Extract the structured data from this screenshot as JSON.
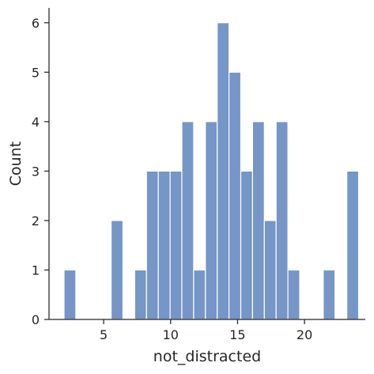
{
  "chart_data": {
    "type": "bar",
    "subtype": "histogram",
    "xlabel": "not_distracted",
    "ylabel": "Count",
    "bar_color": "#7596c6",
    "xlim": [
      0.92,
      24.54
    ],
    "ylim": [
      0,
      6.3
    ],
    "xticks": [
      5,
      10,
      15,
      20
    ],
    "yticks": [
      0,
      1,
      2,
      3,
      4,
      5,
      6
    ],
    "bin_width": 0.88,
    "bins": [
      {
        "x0": 2.04,
        "x1": 2.92,
        "count": 1
      },
      {
        "x0": 2.92,
        "x1": 3.8,
        "count": 0
      },
      {
        "x0": 3.8,
        "x1": 4.68,
        "count": 0
      },
      {
        "x0": 4.68,
        "x1": 5.56,
        "count": 0
      },
      {
        "x0": 5.56,
        "x1": 6.44,
        "count": 2
      },
      {
        "x0": 6.44,
        "x1": 7.32,
        "count": 0
      },
      {
        "x0": 7.32,
        "x1": 8.2,
        "count": 1
      },
      {
        "x0": 8.2,
        "x1": 9.08,
        "count": 3
      },
      {
        "x0": 9.08,
        "x1": 9.96,
        "count": 3
      },
      {
        "x0": 9.96,
        "x1": 10.84,
        "count": 3
      },
      {
        "x0": 10.84,
        "x1": 11.72,
        "count": 4
      },
      {
        "x0": 11.72,
        "x1": 12.6,
        "count": 1
      },
      {
        "x0": 12.6,
        "x1": 13.48,
        "count": 4
      },
      {
        "x0": 13.48,
        "x1": 14.36,
        "count": 6
      },
      {
        "x0": 14.36,
        "x1": 15.24,
        "count": 5
      },
      {
        "x0": 15.24,
        "x1": 16.12,
        "count": 3
      },
      {
        "x0": 16.12,
        "x1": 17.0,
        "count": 4
      },
      {
        "x0": 17.0,
        "x1": 17.88,
        "count": 2
      },
      {
        "x0": 17.88,
        "x1": 18.76,
        "count": 4
      },
      {
        "x0": 18.76,
        "x1": 19.64,
        "count": 1
      },
      {
        "x0": 19.64,
        "x1": 20.52,
        "count": 0
      },
      {
        "x0": 20.52,
        "x1": 21.4,
        "count": 0
      },
      {
        "x0": 21.4,
        "x1": 22.28,
        "count": 1
      },
      {
        "x0": 22.28,
        "x1": 23.16,
        "count": 0
      },
      {
        "x0": 23.16,
        "x1": 24.04,
        "count": 3
      }
    ]
  }
}
